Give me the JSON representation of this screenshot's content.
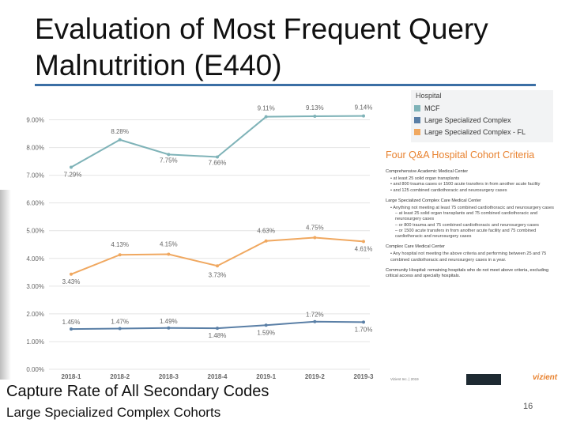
{
  "slide": {
    "title": "Evaluation of Most Frequent Query Malnutrition (E440)",
    "subtitle_line1": "Capture Rate of All Secondary Codes",
    "subtitle_line2": "Large Specialized Complex Cohorts",
    "page_number": "16"
  },
  "chart_data": {
    "type": "line",
    "categories": [
      "2018-1",
      "2018-2",
      "2018-3",
      "2018-4",
      "2019-1",
      "2019-2",
      "2019-3"
    ],
    "y_ticks": [
      "0.00%",
      "1.00%",
      "2.00%",
      "3.00%",
      "4.00%",
      "5.00%",
      "6.00%",
      "7.00%",
      "8.00%",
      "9.00%"
    ],
    "ylim": [
      0,
      9.5
    ],
    "grid": true,
    "legend": {
      "title": "Hospital",
      "placement": "top-right"
    },
    "series": [
      {
        "name": "MCF",
        "color": "#7fb3b8",
        "values": [
          7.29,
          8.28,
          7.75,
          7.66,
          9.11,
          9.13,
          9.14
        ],
        "labels": [
          "7.29%",
          "8.28%",
          "7.75%",
          "7.66%",
          "9.11%",
          "9.13%",
          "9.14%"
        ]
      },
      {
        "name": "Large Specialized Complex",
        "color": "#5a7fa6",
        "values": [
          1.45,
          1.47,
          1.49,
          1.48,
          1.59,
          1.72,
          1.7
        ],
        "labels": [
          "1.45%",
          "1.47%",
          "1.49%",
          "1.48%",
          "1.59%",
          "1.72%",
          "1.70%"
        ]
      },
      {
        "name": "Large Specialized Complex - FL",
        "color": "#f0a860",
        "values": [
          3.43,
          4.13,
          4.15,
          3.73,
          4.63,
          4.75,
          4.61
        ],
        "labels": [
          "3.43%",
          "4.13%",
          "4.15%",
          "3.73%",
          "4.63%",
          "4.75%",
          "4.61%"
        ]
      }
    ]
  },
  "criteria_panel": {
    "title": "Four Q&A Hospital Cohort Criteria",
    "sections": [
      {
        "heading": "Comprehensive Academic Medical Center",
        "bullets": [
          "at least 25 solid organ transplants",
          "and 800 trauma cases or 1500 acute transfers in from another acute facility",
          "and 125 combined cardiothoracic and neurosurgery cases"
        ],
        "subs": []
      },
      {
        "heading": "Large Specialized Complex Care Medical Center",
        "bullets": [
          "Anything not meeting at least 75 combined cardiothoracic and neurosurgery cases"
        ],
        "subs": [
          "at least 25 solid organ transplants and 75 combined cardiothoracic and neurosurgery cases",
          "or 800 trauma and 75 combined cardiothoracic and neurosurgery cases",
          "or 1500 acute transfers in from another acute facility and 75 combined cardiothoracic and neurosurgery cases"
        ]
      },
      {
        "heading": "Complex Care Medical Center",
        "bullets": [
          "Any hospital not meeting the above criteria and performing between 25 and 75 combined cardiothoracic and neurosurgery cases in a year."
        ],
        "subs": []
      },
      {
        "heading": "Community Hospital: remaining hospitals who do not meet above criteria, excluding critical access and specialty hospitals.",
        "bullets": [],
        "subs": []
      }
    ],
    "footer_text": "Vizient Inc. | 2019",
    "footer_logo": "vizient"
  }
}
